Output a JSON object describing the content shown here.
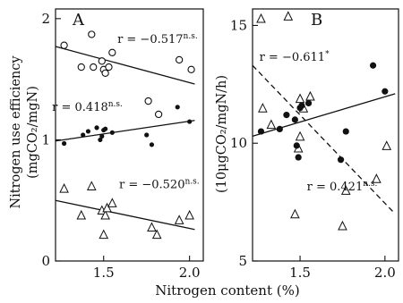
{
  "chart_data": [
    {
      "type": "scatter",
      "panel": "A",
      "xlabel": "Nitrogen content (%)",
      "ylabel": [
        "Nitrogen use efficiency",
        "(mgCO₂/mgN)"
      ],
      "xlim": [
        1.22,
        2.08
      ],
      "ylim": [
        0,
        2.08
      ],
      "xticks": [
        1.5,
        2.0
      ],
      "xticklabels": [
        "1.5",
        "2.0"
      ],
      "yticks": [
        0,
        1,
        2
      ],
      "yticklabels": [
        "0",
        "1",
        "2"
      ],
      "series": [
        {
          "marker": "open-circle",
          "points": [
            [
              1.27,
              1.78
            ],
            [
              1.43,
              1.87
            ],
            [
              1.37,
              1.6
            ],
            [
              1.44,
              1.6
            ],
            [
              1.49,
              1.65
            ],
            [
              1.5,
              1.58
            ],
            [
              1.51,
              1.55
            ],
            [
              1.53,
              1.6
            ],
            [
              1.55,
              1.72
            ],
            [
              1.76,
              1.32
            ],
            [
              1.82,
              1.21
            ],
            [
              1.94,
              1.66
            ],
            [
              2.01,
              1.58
            ]
          ],
          "fit_line": [
            [
              1.22,
              1.77
            ],
            [
              2.03,
              1.46
            ]
          ],
          "annotation": {
            "text": "r = −0.517",
            "sup": "n.s.",
            "at": [
              1.58,
              1.8
            ]
          }
        },
        {
          "marker": "filled-circle",
          "points": [
            [
              1.27,
              0.97
            ],
            [
              1.38,
              1.04
            ],
            [
              1.41,
              1.07
            ],
            [
              1.46,
              1.1
            ],
            [
              1.48,
              1.0
            ],
            [
              1.49,
              1.03
            ],
            [
              1.5,
              1.08
            ],
            [
              1.51,
              1.09
            ],
            [
              1.55,
              1.06
            ],
            [
              1.75,
              1.04
            ],
            [
              1.78,
              0.96
            ],
            [
              1.93,
              1.27
            ],
            [
              2.0,
              1.15
            ]
          ],
          "fit_line": [
            [
              1.22,
              0.99
            ],
            [
              2.03,
              1.16
            ]
          ],
          "annotation": {
            "text": "r = 0.418",
            "sup": "n.s.",
            "at": [
              1.2,
              1.24
            ]
          }
        },
        {
          "marker": "open-triangle",
          "points": [
            [
              1.27,
              0.6
            ],
            [
              1.37,
              0.38
            ],
            [
              1.43,
              0.62
            ],
            [
              1.49,
              0.42
            ],
            [
              1.5,
              0.22
            ],
            [
              1.51,
              0.38
            ],
            [
              1.52,
              0.44
            ],
            [
              1.55,
              0.48
            ],
            [
              1.78,
              0.28
            ],
            [
              1.81,
              0.22
            ],
            [
              1.94,
              0.34
            ],
            [
              2.0,
              0.38
            ]
          ],
          "fit_line": [
            [
              1.22,
              0.5
            ],
            [
              2.03,
              0.26
            ]
          ],
          "annotation": {
            "text": "r = −0.520",
            "sup": "n.s.",
            "at": [
              1.59,
              0.6
            ]
          }
        }
      ]
    },
    {
      "type": "scatter",
      "panel": "B",
      "xlabel": "Nitrogen content (%)",
      "ylabel": [
        "(10μgCO₂/mgN/h)"
      ],
      "xlim": [
        1.22,
        2.08
      ],
      "ylim": [
        5,
        15.7
      ],
      "xticks": [
        1.5,
        2.0
      ],
      "xticklabels": [
        "1.5",
        "2.0"
      ],
      "yticks": [
        5,
        10,
        15
      ],
      "yticklabels": [
        "5",
        "10",
        "15"
      ],
      "series": [
        {
          "marker": "open-triangle",
          "points": [
            [
              1.27,
              15.3
            ],
            [
              1.43,
              15.4
            ],
            [
              1.28,
              11.5
            ],
            [
              1.33,
              10.8
            ],
            [
              1.47,
              7.0
            ],
            [
              1.49,
              9.8
            ],
            [
              1.5,
              10.3
            ],
            [
              1.5,
              11.9
            ],
            [
              1.52,
              11.5
            ],
            [
              1.56,
              12.0
            ],
            [
              1.77,
              8.0
            ],
            [
              1.75,
              6.5
            ],
            [
              1.95,
              8.5
            ],
            [
              2.01,
              9.9
            ]
          ],
          "fit_line": [
            [
              1.22,
              13.3
            ],
            [
              2.06,
              7.0
            ]
          ],
          "line_style": "dashed",
          "annotation": {
            "text": "r = −0.611",
            "sup": "*",
            "at": [
              1.26,
              13.5
            ]
          }
        },
        {
          "marker": "filled-circle",
          "points": [
            [
              1.27,
              10.5
            ],
            [
              1.38,
              10.6
            ],
            [
              1.42,
              11.2
            ],
            [
              1.47,
              11.0
            ],
            [
              1.48,
              9.9
            ],
            [
              1.49,
              9.4
            ],
            [
              1.5,
              11.5
            ],
            [
              1.51,
              11.6
            ],
            [
              1.55,
              11.7
            ],
            [
              1.74,
              9.3
            ],
            [
              1.77,
              10.5
            ],
            [
              1.93,
              13.3
            ],
            [
              2.0,
              12.2
            ]
          ],
          "fit_line": [
            [
              1.22,
              10.3
            ],
            [
              2.06,
              12.1
            ]
          ],
          "line_style": "solid",
          "annotation": {
            "text": "r = 0.421",
            "sup": "n.s.",
            "at": [
              1.54,
              8.0
            ]
          }
        }
      ]
    }
  ],
  "figure": {
    "xlabel": "Nitrogen content (%)"
  }
}
